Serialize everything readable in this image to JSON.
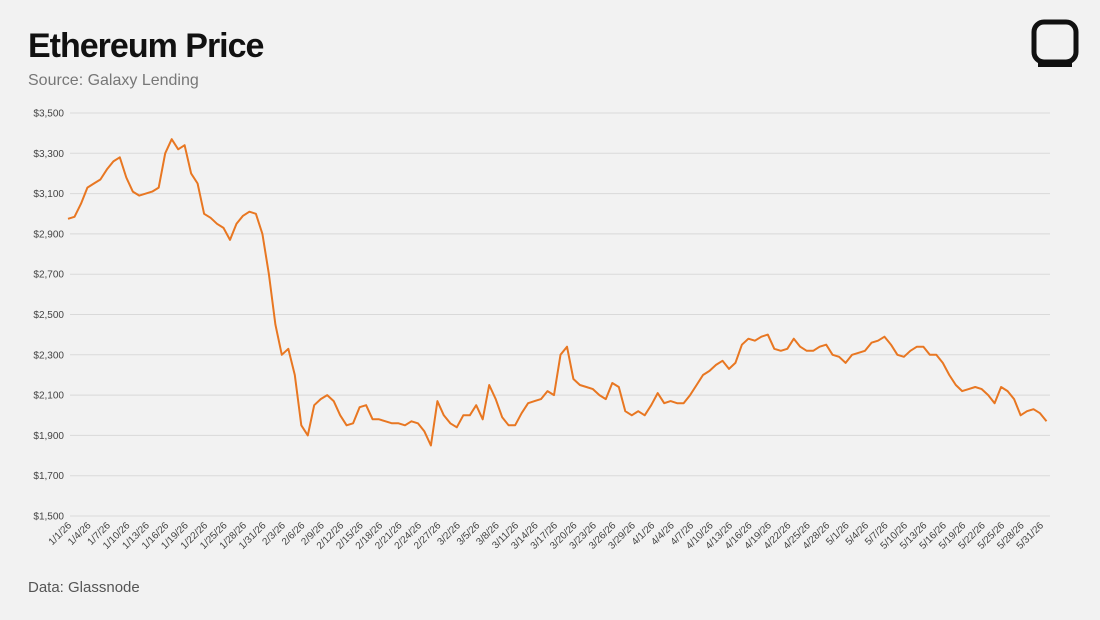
{
  "chart_data": {
    "type": "line",
    "title": "Ethereum Price",
    "subtitle": "Source: Galaxy Lending",
    "footnote": "Data: Glassnode",
    "color": "#e87722",
    "grid": true,
    "categories": [
      "1/1/26",
      null,
      null,
      "1/4/26",
      null,
      null,
      "1/7/26",
      null,
      null,
      "1/10/26",
      null,
      null,
      "1/13/26",
      null,
      null,
      "1/16/26",
      null,
      null,
      "1/19/26",
      null,
      null,
      "1/22/26",
      null,
      null,
      "1/25/26",
      null,
      null,
      "1/28/26",
      null,
      null,
      "1/31/26",
      null,
      null,
      "2/3/26",
      null,
      null,
      "2/6/26",
      null,
      null,
      "2/9/26",
      null,
      null,
      "2/12/26",
      null,
      null,
      "2/15/26",
      null,
      null,
      "2/18/26",
      null,
      null,
      "2/21/26",
      null,
      null,
      "2/24/26",
      null,
      null,
      "2/27/26",
      null,
      null,
      "3/2/26",
      null,
      null,
      "3/5/26",
      null,
      null,
      "3/8/26",
      null,
      null,
      "3/11/26",
      null,
      null,
      "3/14/26",
      null,
      null,
      "3/17/26",
      null,
      null,
      "3/20/26",
      null,
      null,
      "3/23/26",
      null,
      null,
      "3/26/26",
      null,
      null,
      "3/29/26",
      null,
      null,
      "4/1/26",
      null,
      null,
      "4/4/26",
      null,
      null,
      "4/7/26",
      null,
      null,
      "4/10/26",
      null,
      null,
      "4/13/26",
      null,
      null,
      "4/16/26",
      null,
      null,
      "4/19/26",
      null,
      null,
      "4/22/26",
      null,
      null,
      "4/25/26",
      null,
      null,
      "4/28/26",
      null,
      null,
      "5/1/26",
      null,
      null,
      "5/4/26",
      null,
      null,
      "5/7/26",
      null,
      null,
      "5/10/26",
      null,
      null,
      "5/13/26",
      null,
      null,
      "5/16/26",
      null,
      null,
      "5/19/26",
      null,
      null,
      "5/22/26",
      null,
      null,
      "5/25/26",
      null,
      null,
      "5/28/26",
      null,
      null,
      "5/31/26",
      null
    ],
    "values": [
      2975,
      2985,
      3050,
      3130,
      3150,
      3170,
      3220,
      3260,
      3280,
      3180,
      3110,
      3090,
      3100,
      3110,
      3130,
      3300,
      3370,
      3320,
      3340,
      3200,
      3150,
      3000,
      2980,
      2950,
      2930,
      2870,
      2950,
      2990,
      3010,
      3000,
      2900,
      2700,
      2450,
      2300,
      2330,
      2200,
      1950,
      1900,
      2050,
      2080,
      2100,
      2070,
      2000,
      1950,
      1960,
      2040,
      2050,
      1980,
      1980,
      1970,
      1960,
      1960,
      1950,
      1970,
      1960,
      1920,
      1850,
      2070,
      2000,
      1960,
      1940,
      2000,
      2000,
      2050,
      1980,
      2150,
      2080,
      1990,
      1950,
      1950,
      2010,
      2060,
      2070,
      2080,
      2120,
      2100,
      2300,
      2340,
      2180,
      2150,
      2140,
      2130,
      2100,
      2080,
      2160,
      2140,
      2020,
      2000,
      2020,
      2000,
      2050,
      2110,
      2060,
      2070,
      2060,
      2060,
      2100,
      2150,
      2200,
      2220,
      2250,
      2270,
      2230,
      2260,
      2350,
      2380,
      2370,
      2390,
      2400,
      2330,
      2320,
      2330,
      2380,
      2340,
      2320,
      2320,
      2340,
      2350,
      2300,
      2290,
      2260,
      2300,
      2310,
      2320,
      2360,
      2370,
      2390,
      2350,
      2300,
      2290,
      2320,
      2340,
      2340,
      2300,
      2300,
      2260,
      2200,
      2150,
      2120,
      2130,
      2140,
      2130,
      2100,
      2060,
      2140,
      2120,
      2080,
      2000,
      2020,
      2030,
      2010,
      1970
    ],
    "ylim": [
      1500,
      3500
    ],
    "yticks": [
      {
        "value": 1500,
        "label": "$1,500"
      },
      {
        "value": 1700,
        "label": "$1,700"
      },
      {
        "value": 1900,
        "label": "$1,900"
      },
      {
        "value": 2100,
        "label": "$2,100"
      },
      {
        "value": 2300,
        "label": "$2,300"
      },
      {
        "value": 2500,
        "label": "$2,500"
      },
      {
        "value": 2700,
        "label": "$2,700"
      },
      {
        "value": 2900,
        "label": "$2,900"
      },
      {
        "value": 3100,
        "label": "$3,100"
      },
      {
        "value": 3300,
        "label": "$3,300"
      },
      {
        "value": 3500,
        "label": "$3,500"
      }
    ]
  }
}
